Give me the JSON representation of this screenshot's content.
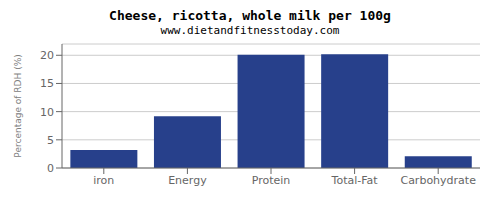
{
  "chart_data": {
    "type": "bar",
    "title": "Cheese, ricotta, whole milk per 100g",
    "subtitle": "www.dietandfitnesstoday.com",
    "categories": [
      "iron",
      "Energy",
      "Protein",
      "Total-Fat",
      "Carbohydrate"
    ],
    "values": [
      3.2,
      9.2,
      20.1,
      20.2,
      2.1
    ],
    "color": "#27408B",
    "ylabel": "Percentage of RDH (%)",
    "ylim": [
      0,
      22
    ],
    "yticks": [
      0,
      5,
      10,
      15,
      20
    ],
    "grid": true
  }
}
